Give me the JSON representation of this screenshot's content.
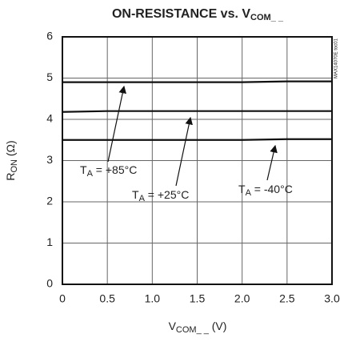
{
  "chart_data": {
    "type": "line",
    "title": [
      "ON-RESISTANCE vs. V",
      "COM_ _"
    ],
    "x_label": [
      "V",
      "COM_ _",
      " (V)"
    ],
    "y_label": [
      "R",
      "ON",
      " (Ω)"
    ],
    "figure_id": "MAX14070E toc01",
    "x": [
      0,
      0.5,
      1.0,
      1.5,
      2.0,
      2.5,
      3.0
    ],
    "series": [
      {
        "name": [
          "T",
          "A",
          " = +85°C"
        ],
        "color": "#111111",
        "values": [
          4.9,
          4.9,
          4.9,
          4.9,
          4.9,
          4.92,
          4.92
        ]
      },
      {
        "name": [
          "T",
          "A",
          " = +25°C"
        ],
        "color": "#111111",
        "values": [
          4.18,
          4.2,
          4.2,
          4.2,
          4.2,
          4.2,
          4.2
        ]
      },
      {
        "name": [
          "T",
          "A",
          " = -40°C"
        ],
        "color": "#111111",
        "values": [
          3.5,
          3.5,
          3.5,
          3.5,
          3.5,
          3.52,
          3.52
        ]
      }
    ],
    "xlim": [
      0,
      3.0
    ],
    "ylim": [
      0,
      6
    ],
    "xticks": [
      0,
      0.5,
      {
        "value": 1.0,
        "label": "1.0"
      },
      1.5,
      {
        "value": 2.0,
        "label": "2.0"
      },
      2.5,
      {
        "value": 3.0,
        "label": "3.0"
      }
    ],
    "yticks": [
      0,
      1,
      2,
      3,
      4,
      5,
      6
    ],
    "grid": true
  }
}
